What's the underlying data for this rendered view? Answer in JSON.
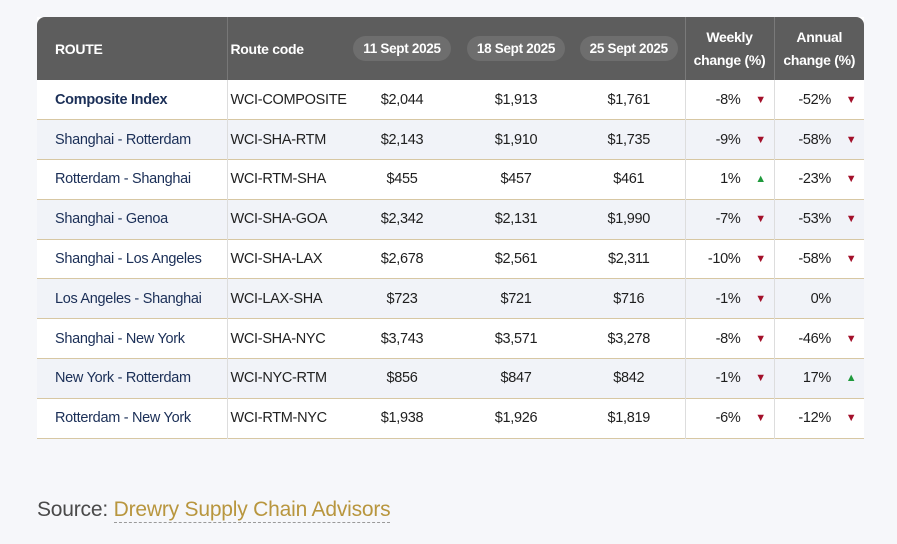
{
  "table": {
    "headers": {
      "route": "ROUTE",
      "code": "Route code",
      "date1": "11 Sept 2025",
      "date2": "18 Sept 2025",
      "date3": "25 Sept 2025",
      "weekly_line1": "Weekly",
      "weekly_line2": "change (%)",
      "annual_line1": "Annual",
      "annual_line2": "change (%)"
    },
    "rows": [
      {
        "route": "Composite Index",
        "code": "WCI-COMPOSITE",
        "d1": "$2,044",
        "d2": "$1,913",
        "d3": "$1,761",
        "weekly": "-8%",
        "weekly_dir": "down",
        "annual": "-52%",
        "annual_dir": "down"
      },
      {
        "route": "Shanghai - Rotterdam",
        "code": "WCI-SHA-RTM",
        "d1": "$2,143",
        "d2": "$1,910",
        "d3": "$1,735",
        "weekly": "-9%",
        "weekly_dir": "down",
        "annual": "-58%",
        "annual_dir": "down"
      },
      {
        "route": "Rotterdam - Shanghai",
        "code": "WCI-RTM-SHA",
        "d1": "$455",
        "d2": "$457",
        "d3": "$461",
        "weekly": "1%",
        "weekly_dir": "up",
        "annual": "-23%",
        "annual_dir": "down"
      },
      {
        "route": "Shanghai - Genoa",
        "code": "WCI-SHA-GOA",
        "d1": "$2,342",
        "d2": "$2,131",
        "d3": "$1,990",
        "weekly": "-7%",
        "weekly_dir": "down",
        "annual": "-53%",
        "annual_dir": "down"
      },
      {
        "route": "Shanghai - Los Angeles",
        "code": "WCI-SHA-LAX",
        "d1": "$2,678",
        "d2": "$2,561",
        "d3": "$2,311",
        "weekly": "-10%",
        "weekly_dir": "down",
        "annual": "-58%",
        "annual_dir": "down"
      },
      {
        "route": "Los Angeles - Shanghai",
        "code": "WCI-LAX-SHA",
        "d1": "$723",
        "d2": "$721",
        "d3": "$716",
        "weekly": "-1%",
        "weekly_dir": "down",
        "annual": "0%",
        "annual_dir": "none"
      },
      {
        "route": "Shanghai - New York",
        "code": "WCI-SHA-NYC",
        "d1": "$3,743",
        "d2": "$3,571",
        "d3": "$3,278",
        "weekly": "-8%",
        "weekly_dir": "down",
        "annual": "-46%",
        "annual_dir": "down"
      },
      {
        "route": "New York - Rotterdam",
        "code": "WCI-NYC-RTM",
        "d1": "$856",
        "d2": "$847",
        "d3": "$842",
        "weekly": "-1%",
        "weekly_dir": "down",
        "annual": "17%",
        "annual_dir": "up"
      },
      {
        "route": "Rotterdam - New York",
        "code": "WCI-RTM-NYC",
        "d1": "$1,938",
        "d2": "$1,926",
        "d3": "$1,819",
        "weekly": "-6%",
        "weekly_dir": "down",
        "annual": "-12%",
        "annual_dir": "down"
      }
    ]
  },
  "source": {
    "prefix": "Source: ",
    "link_text": "Drewry Supply Chain Advisors"
  },
  "colors": {
    "header_bg": "#5d5d5d",
    "down_arrow": "#a3102a",
    "up_arrow": "#1f9a3c",
    "link": "#b8963e"
  },
  "icons": {
    "down": "triangle-down-icon",
    "up": "triangle-up-icon"
  }
}
